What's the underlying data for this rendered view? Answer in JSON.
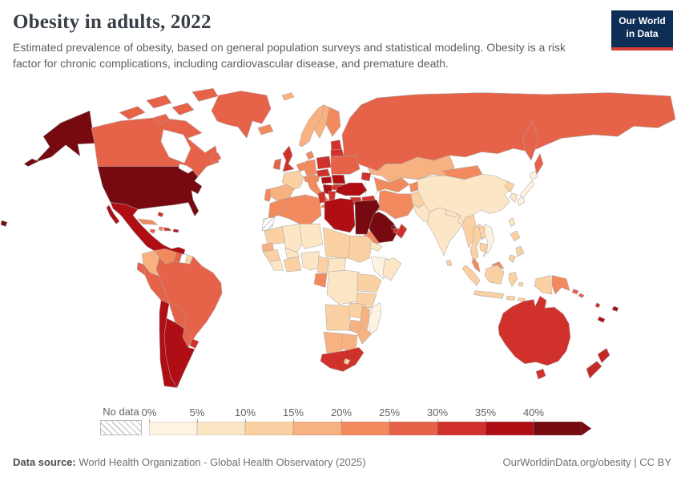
{
  "header": {
    "title": "Obesity in adults, 2022",
    "subtitle": "Estimated prevalence of obesity, based on general population surveys and statistical modeling. Obesity is a risk factor for chronic complications, including cardiovascular disease, and premature death.",
    "logo": {
      "line1": "Our World",
      "line2": "in Data",
      "bg_color": "#0e2f55",
      "bar_color": "#d63f35"
    }
  },
  "footer": {
    "datasource_label": "Data source:",
    "datasource_text": "World Health Organization - Global Health Observatory (2025)",
    "right_text": "OurWorldinData.org/obesity | CC BY"
  },
  "chart_data": {
    "type": "choropleth_map",
    "title": "Obesity in adults, 2022",
    "unit": "share of adults (%)",
    "legend": {
      "no_data_label": "No data",
      "tick_labels": [
        "0%",
        "5%",
        "10%",
        "15%",
        "20%",
        "25%",
        "30%",
        "35%",
        "40%"
      ],
      "bins": [
        {
          "range": "0–5%",
          "color": "#FEF2E1"
        },
        {
          "range": "5–10%",
          "color": "#FDE6C5"
        },
        {
          "range": "10–15%",
          "color": "#FBD1A3"
        },
        {
          "range": "15–20%",
          "color": "#F8B181"
        },
        {
          "range": "20–25%",
          "color": "#F28A5E"
        },
        {
          "range": "25–30%",
          "color": "#E66248"
        },
        {
          "range": "30–35%",
          "color": "#D0322B"
        },
        {
          "range": "35–40%",
          "color": "#AF0E14"
        },
        {
          "range": "40%+",
          "color": "#760A10"
        }
      ]
    },
    "regions": {
      "usa": {
        "name": "United States",
        "value": "40%+",
        "color": "#760A10"
      },
      "canada": {
        "name": "Canada",
        "value": "25–30%",
        "color": "#E66248"
      },
      "greenland": {
        "name": "Greenland",
        "value": "25–30%",
        "color": "#E66248"
      },
      "iceland": {
        "name": "Iceland",
        "value": "20–25%",
        "color": "#F28A5E"
      },
      "mexico": {
        "name": "Mexico",
        "value": "35–40%",
        "color": "#AF0E14"
      },
      "guatemala": {
        "name": "Guatemala & Honduras",
        "value": "25–30%",
        "color": "#E66248"
      },
      "panama": {
        "name": "Nicaragua, Costa Rica & Panama",
        "value": "30–35%",
        "color": "#D0322B"
      },
      "cuba": {
        "name": "Cuba",
        "value": "20–25%",
        "color": "#F28A5E"
      },
      "jamaica": {
        "name": "Jamaica",
        "value": "25–30%",
        "color": "#E66248"
      },
      "haiti": {
        "name": "Haiti",
        "value": "20–25%",
        "color": "#F28A5E"
      },
      "dominican-republic": {
        "name": "Dominican Republic",
        "value": "30–35%",
        "color": "#D0322B"
      },
      "puerto-rico": {
        "name": "Puerto Rico",
        "value": "35–40%",
        "color": "#AF0E14"
      },
      "bahamas": {
        "name": "Bahamas",
        "value": "30–35%",
        "color": "#D0322B"
      },
      "colombia": {
        "name": "Colombia",
        "value": "15–20%",
        "color": "#F8B181"
      },
      "venezuela": {
        "name": "Venezuela",
        "value": "20–25%",
        "color": "#F28A5E"
      },
      "guyana": {
        "name": "Guyana",
        "value": "25–30%",
        "color": "#E66248"
      },
      "suriname": {
        "name": "Suriname",
        "value": "No data",
        "color": "#FFFFFF"
      },
      "french-guiana": {
        "name": "French Guiana",
        "value": "10–15%",
        "color": "#FBD1A3"
      },
      "ecuador": {
        "name": "Ecuador",
        "value": "25–30%",
        "color": "#E66248"
      },
      "peru": {
        "name": "Peru",
        "value": "25–30%",
        "color": "#E66248"
      },
      "brazil": {
        "name": "Brazil",
        "value": "25–30%",
        "color": "#E66248"
      },
      "bolivia": {
        "name": "Bolivia",
        "value": "25–30%",
        "color": "#E66248"
      },
      "paraguay": {
        "name": "Paraguay",
        "value": "25–30%",
        "color": "#E66248"
      },
      "uruguay": {
        "name": "Uruguay",
        "value": "30–35%",
        "color": "#D0322B"
      },
      "chile": {
        "name": "Chile",
        "value": "35–40%",
        "color": "#AF0E14"
      },
      "argentina": {
        "name": "Argentina",
        "value": "35–40%",
        "color": "#AF0E14"
      },
      "uk": {
        "name": "United Kingdom",
        "value": "30–35%",
        "color": "#D0322B"
      },
      "ireland": {
        "name": "Ireland",
        "value": "25–30%",
        "color": "#E66248"
      },
      "france": {
        "name": "France",
        "value": "10–15%",
        "color": "#FBD1A3"
      },
      "spain": {
        "name": "Spain",
        "value": "15–20%",
        "color": "#F8B181"
      },
      "portugal": {
        "name": "Portugal",
        "value": "20–25%",
        "color": "#F28A5E"
      },
      "germany": {
        "name": "Germany",
        "value": "20–25%",
        "color": "#F28A5E"
      },
      "benelux": {
        "name": "Belgium & Netherlands",
        "value": "20–25%",
        "color": "#F28A5E"
      },
      "italy": {
        "name": "Italy",
        "value": "20–25%",
        "color": "#F28A5E"
      },
      "switzerland-austria": {
        "name": "Switzerland & Austria",
        "value": "20–25%",
        "color": "#F28A5E"
      },
      "denmark": {
        "name": "Denmark",
        "value": "20–25%",
        "color": "#F28A5E"
      },
      "norway": {
        "name": "Norway",
        "value": "15–20%",
        "color": "#F8B181"
      },
      "sweden": {
        "name": "Sweden",
        "value": "15–20%",
        "color": "#F8B181"
      },
      "finland": {
        "name": "Finland",
        "value": "20–25%",
        "color": "#F28A5E"
      },
      "baltics": {
        "name": "Baltic states",
        "value": "30–35%",
        "color": "#D0322B"
      },
      "poland": {
        "name": "Poland",
        "value": "30–35%",
        "color": "#D0322B"
      },
      "czechia-slovakia": {
        "name": "Czechia & Slovakia",
        "value": "30–35%",
        "color": "#D0322B"
      },
      "hungary": {
        "name": "Hungary",
        "value": "35–40%",
        "color": "#AF0E14"
      },
      "romania": {
        "name": "Romania",
        "value": "35–40%",
        "color": "#AF0E14"
      },
      "balkans": {
        "name": "Serbia & Western Balkans",
        "value": "35–40%",
        "color": "#AF0E14"
      },
      "bulgaria": {
        "name": "Bulgaria",
        "value": "30–35%",
        "color": "#D0322B"
      },
      "greece": {
        "name": "Greece",
        "value": "30–35%",
        "color": "#D0322B"
      },
      "ukraine": {
        "name": "Ukraine",
        "value": "25–30%",
        "color": "#E66248"
      },
      "belarus": {
        "name": "Belarus",
        "value": "30–35%",
        "color": "#D0322B"
      },
      "russia": {
        "name": "Russia",
        "value": "25–30%",
        "color": "#E66248"
      },
      "kazakhstan": {
        "name": "Kazakhstan",
        "value": "15–20%",
        "color": "#F8B181"
      },
      "uzbekistan-turkmenistan": {
        "name": "Uzbekistan & Turkmenistan",
        "value": "20–25%",
        "color": "#F28A5E"
      },
      "kyrgyzstan-tajikistan": {
        "name": "Kyrgyzstan & Tajikistan",
        "value": "20–25%",
        "color": "#F28A5E"
      },
      "caucasus": {
        "name": "Georgia & Azerbaijan",
        "value": "30–35%",
        "color": "#D0322B"
      },
      "turkey": {
        "name": "Turkey",
        "value": "35–40%",
        "color": "#AF0E14"
      },
      "syria": {
        "name": "Syria",
        "value": "30–35%",
        "color": "#D0322B"
      },
      "jordan-israel": {
        "name": "Jordan & Israel",
        "value": "30–35%",
        "color": "#D0322B"
      },
      "iraq": {
        "name": "Iraq",
        "value": "30–35%",
        "color": "#D0322B"
      },
      "iran": {
        "name": "Iran",
        "value": "20–25%",
        "color": "#F28A5E"
      },
      "saudi-arabia": {
        "name": "Saudi Arabia",
        "value": "40%+",
        "color": "#760A10"
      },
      "kuwait": {
        "name": "Kuwait",
        "value": "35–40%",
        "color": "#AF0E14"
      },
      "qatar": {
        "name": "Qatar",
        "value": "40%+",
        "color": "#760A10"
      },
      "uae": {
        "name": "United Arab Emirates",
        "value": "30–35%",
        "color": "#D0322B"
      },
      "oman": {
        "name": "Oman",
        "value": "30–35%",
        "color": "#D0322B"
      },
      "yemen": {
        "name": "Yemen",
        "value": "20–25%",
        "color": "#F28A5E"
      },
      "afghanistan": {
        "name": "Afghanistan",
        "value": "10–15%",
        "color": "#FBD1A3"
      },
      "pakistan": {
        "name": "Pakistan",
        "value": "5–10%",
        "color": "#FDE6C5"
      },
      "india": {
        "name": "India",
        "value": "5–10%",
        "color": "#FDE6C5"
      },
      "nepal": {
        "name": "Nepal",
        "value": "5–10%",
        "color": "#FDE6C5"
      },
      "bangladesh": {
        "name": "Bangladesh",
        "value": "5–10%",
        "color": "#FDE6C5"
      },
      "sri-lanka": {
        "name": "Sri Lanka",
        "value": "10–15%",
        "color": "#FBD1A3"
      },
      "china": {
        "name": "China",
        "value": "5–10%",
        "color": "#FDE6C5"
      },
      "mongolia": {
        "name": "Mongolia",
        "value": "20–25%",
        "color": "#F28A5E"
      },
      "north-korea": {
        "name": "North Korea",
        "value": "10–15%",
        "color": "#FBD1A3"
      },
      "south-korea": {
        "name": "South Korea",
        "value": "5–10%",
        "color": "#FDE6C5"
      },
      "japan": {
        "name": "Japan",
        "value": "0–5%",
        "color": "#FEF2E1"
      },
      "taiwan": {
        "name": "Taiwan",
        "value": "5–10%",
        "color": "#FDE6C5"
      },
      "myanmar": {
        "name": "Myanmar",
        "value": "10–15%",
        "color": "#FBD1A3"
      },
      "thailand": {
        "name": "Thailand",
        "value": "10–15%",
        "color": "#FBD1A3"
      },
      "laos": {
        "name": "Laos",
        "value": "10–15%",
        "color": "#FBD1A3"
      },
      "vietnam": {
        "name": "Vietnam",
        "value": "0–5%",
        "color": "#FEF2E1"
      },
      "cambodia": {
        "name": "Cambodia",
        "value": "10–15%",
        "color": "#FBD1A3"
      },
      "malaysia": {
        "name": "Malaysia",
        "value": "20–25%",
        "color": "#F28A5E"
      },
      "indonesia": {
        "name": "Indonesia",
        "value": "10–15%",
        "color": "#FBD1A3"
      },
      "philippines": {
        "name": "Philippines",
        "value": "10–15%",
        "color": "#FBD1A3"
      },
      "papua-new-guinea": {
        "name": "Papua New Guinea",
        "value": "20–25%",
        "color": "#F28A5E"
      },
      "solomon-islands": {
        "name": "Solomon Islands",
        "value": "25–30%",
        "color": "#E66248"
      },
      "vanuatu": {
        "name": "Vanuatu",
        "value": "30–35%",
        "color": "#D0322B"
      },
      "fiji": {
        "name": "Fiji",
        "value": "35–40%",
        "color": "#AF0E14"
      },
      "new-caledonia": {
        "name": "New Caledonia",
        "value": "35–40%",
        "color": "#AF0E14"
      },
      "australia": {
        "name": "Australia",
        "value": "30–35%",
        "color": "#D0322B"
      },
      "new-zealand": {
        "name": "New Zealand",
        "value": "30–35%",
        "color": "#C22B28"
      },
      "morocco": {
        "name": "Morocco",
        "value": "20–25%",
        "color": "#F28A5E"
      },
      "western-sahara": {
        "name": "Western Sahara",
        "value": "No data",
        "color": "hatch"
      },
      "algeria": {
        "name": "Algeria",
        "value": "20–25%",
        "color": "#F28A5E"
      },
      "tunisia": {
        "name": "Tunisia",
        "value": "30–35%",
        "color": "#D0322B"
      },
      "libya": {
        "name": "Libya",
        "value": "35–40%",
        "color": "#AF0E14"
      },
      "egypt": {
        "name": "Egypt",
        "value": "40%+",
        "color": "#760A10"
      },
      "mauritania": {
        "name": "Mauritania",
        "value": "10–15%",
        "color": "#FBD1A3"
      },
      "mali": {
        "name": "Mali",
        "value": "5–10%",
        "color": "#FDE6C5"
      },
      "niger": {
        "name": "Niger",
        "value": "5–10%",
        "color": "#FDE6C5"
      },
      "chad": {
        "name": "Chad",
        "value": "10–15%",
        "color": "#FBD1A3"
      },
      "sudan": {
        "name": "Sudan",
        "value": "10–15%",
        "color": "#FBD1A3"
      },
      "eritrea": {
        "name": "Eritrea",
        "value": "5–10%",
        "color": "#FDE6C5"
      },
      "senegal": {
        "name": "Senegal & Gambia",
        "value": "15–20%",
        "color": "#F8B181"
      },
      "guinea": {
        "name": "Guinea",
        "value": "10–15%",
        "color": "#FBD1A3"
      },
      "sierra-leone-liberia": {
        "name": "Sierra Leone & Liberia",
        "value": "5–10%",
        "color": "#FDE6C5"
      },
      "cote-divoire-ghana": {
        "name": "Côte d'Ivoire & Ghana",
        "value": "10–15%",
        "color": "#FBD1A3"
      },
      "burkina-faso": {
        "name": "Burkina Faso",
        "value": "5–10%",
        "color": "#FDE6C5"
      },
      "nigeria": {
        "name": "Nigeria",
        "value": "5–10%",
        "color": "#FDE6C5"
      },
      "cameroon": {
        "name": "Cameroon",
        "value": "10–15%",
        "color": "#FBD1A3"
      },
      "central-african-republic": {
        "name": "Central African Republic",
        "value": "5–10%",
        "color": "#FDE6C5"
      },
      "gabon": {
        "name": "Gabon & Congo",
        "value": "20–25%",
        "color": "#F28A5E"
      },
      "drc": {
        "name": "Democratic Republic of Congo",
        "value": "5–10%",
        "color": "#FDE6C5"
      },
      "ethiopia": {
        "name": "Ethiopia",
        "value": "0–5%",
        "color": "#FEF2E1"
      },
      "somalia": {
        "name": "Somalia",
        "value": "5–10%",
        "color": "#FDE6C5"
      },
      "kenya-uganda": {
        "name": "Kenya & Uganda",
        "value": "10–15%",
        "color": "#FBD1A3"
      },
      "tanzania": {
        "name": "Tanzania",
        "value": "10–15%",
        "color": "#FBD1A3"
      },
      "angola": {
        "name": "Angola",
        "value": "10–15%",
        "color": "#FBD1A3"
      },
      "zambia": {
        "name": "Zambia",
        "value": "10–15%",
        "color": "#FBD1A3"
      },
      "mozambique": {
        "name": "Mozambique",
        "value": "15–20%",
        "color": "#F8B181"
      },
      "zimbabwe": {
        "name": "Zimbabwe",
        "value": "15–20%",
        "color": "#F8B181"
      },
      "namibia": {
        "name": "Namibia",
        "value": "15–20%",
        "color": "#F8B181"
      },
      "botswana": {
        "name": "Botswana",
        "value": "15–20%",
        "color": "#F8B181"
      },
      "south-africa": {
        "name": "South Africa",
        "value": "30–35%",
        "color": "#D0322B"
      },
      "lesotho": {
        "name": "Lesotho",
        "value": "10–15%",
        "color": "#FBD1A3"
      },
      "madagascar": {
        "name": "Madagascar",
        "value": "0–5%",
        "color": "#FEF2E1"
      }
    }
  }
}
